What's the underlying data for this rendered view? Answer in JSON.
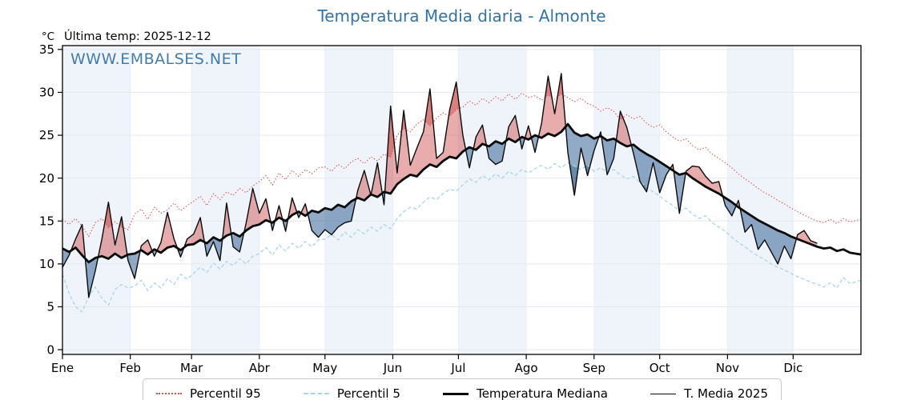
{
  "header": {
    "title": "Temperatura Media diaria - Almonte",
    "unit_label": "°C",
    "last_temp_label": "Última temp: 2025-12-12",
    "watermark": "WWW.EMBALSES.NET"
  },
  "chart_data": {
    "type": "line",
    "title": "Temperatura Media diaria - Almonte",
    "xlabel": "",
    "ylabel": "°C",
    "ylim": [
      0,
      35
    ],
    "y_ticks": [
      0,
      5,
      10,
      15,
      20,
      25,
      30,
      35
    ],
    "x_tick_labels": [
      "Ene",
      "Feb",
      "Mar",
      "Abr",
      "May",
      "Jun",
      "Jul",
      "Ago",
      "Sep",
      "Oct",
      "Nov",
      "Dic"
    ],
    "month_start_days": [
      1,
      32,
      60,
      91,
      121,
      152,
      182,
      213,
      244,
      274,
      305,
      335
    ],
    "days_in_year": 365,
    "sample_day_start": 1,
    "sample_day_step": 3,
    "grid": true,
    "legend_position": "bottom",
    "band_color": "#eff4fa",
    "grid_color": "#e4e8ef",
    "vgrid_color": "#e9eef5",
    "fill_above_color": "rgba(205,70,70,0.45)",
    "fill_below_color": "rgba(54,100,150,0.55)",
    "fill_extreme_above_color": "rgba(200,40,40,0.35)",
    "fill_extreme_below_color": "rgba(30,80,130,0.35)",
    "series": [
      {
        "name": "Percentil 95",
        "style": "dotted",
        "color": "#e14b4b",
        "values": [
          15.2,
          14.6,
          15.3,
          14.4,
          13.2,
          14.8,
          15.3,
          14.2,
          14.9,
          14.3,
          14.0,
          15.8,
          16.4,
          15.2,
          16.6,
          15.9,
          16.3,
          17.1,
          16.2,
          16.8,
          17.3,
          17.9,
          16.8,
          18.2,
          17.5,
          18.4,
          18.0,
          18.8,
          18.3,
          19.1,
          19.6,
          20.3,
          19.2,
          20.6,
          19.8,
          20.9,
          20.2,
          21.0,
          20.5,
          21.2,
          21.3,
          20.8,
          21.6,
          21.1,
          21.9,
          22.3,
          21.7,
          22.5,
          22.0,
          22.8,
          22.4,
          25.0,
          25.8,
          25.4,
          26.3,
          26.8,
          26.1,
          27.0,
          27.6,
          27.2,
          28.0,
          28.3,
          29.0,
          28.5,
          29.3,
          28.8,
          29.5,
          29.0,
          29.8,
          29.2,
          29.9,
          29.4,
          29.6,
          29.1,
          29.7,
          29.2,
          29.8,
          29.4,
          28.9,
          29.3,
          28.7,
          28.4,
          27.8,
          28.2,
          27.8,
          26.8,
          27.4,
          26.9,
          27.2,
          26.4,
          25.9,
          26.2,
          25.4,
          24.8,
          24.3,
          24.6,
          23.8,
          23.3,
          23.6,
          22.8,
          22.3,
          21.8,
          21.2,
          20.5,
          19.9,
          19.4,
          18.8,
          18.3,
          17.9,
          17.4,
          17.0,
          16.5,
          16.1,
          15.7,
          15.3,
          15.0,
          14.8,
          15.2,
          14.7,
          15.3,
          14.9,
          15.2
        ]
      },
      {
        "name": "Percentil 5",
        "style": "dashed",
        "color": "#a9d5ea",
        "values": [
          8.8,
          6.6,
          5.0,
          4.4,
          6.2,
          7.3,
          6.0,
          5.2,
          7.0,
          7.6,
          7.2,
          7.4,
          8.1,
          6.9,
          7.8,
          7.2,
          8.3,
          7.6,
          8.8,
          8.2,
          8.9,
          9.6,
          9.0,
          10.1,
          9.4,
          10.3,
          9.8,
          10.6,
          10.0,
          10.9,
          11.2,
          11.9,
          11.0,
          12.2,
          11.5,
          12.4,
          11.8,
          12.6,
          12.0,
          12.8,
          12.9,
          13.4,
          12.8,
          13.7,
          13.1,
          14.0,
          13.5,
          14.3,
          13.8,
          14.6,
          14.1,
          15.3,
          16.1,
          16.6,
          16.4,
          17.2,
          17.8,
          17.5,
          18.2,
          18.7,
          18.5,
          19.2,
          19.9,
          19.5,
          20.3,
          19.8,
          20.5,
          20.0,
          20.8,
          20.3,
          21.0,
          20.6,
          21.1,
          21.5,
          21.0,
          21.7,
          21.2,
          21.8,
          21.4,
          21.0,
          21.5,
          20.8,
          21.2,
          20.7,
          21.0,
          20.4,
          19.9,
          20.2,
          19.5,
          19.0,
          18.4,
          17.9,
          17.3,
          16.8,
          16.2,
          16.5,
          15.8,
          15.3,
          15.6,
          14.8,
          14.3,
          13.8,
          13.1,
          12.5,
          12.0,
          11.4,
          10.9,
          10.5,
          10.0,
          9.6,
          9.3,
          8.9,
          8.5,
          8.2,
          7.9,
          7.6,
          7.3,
          7.8,
          7.2,
          8.4,
          7.7,
          8.1
        ]
      },
      {
        "name": "Temperatura Mediana",
        "style": "solid-thick",
        "color": "#0a0a0a",
        "values": [
          11.8,
          11.4,
          11.9,
          11.0,
          10.2,
          10.7,
          10.9,
          10.6,
          11.2,
          10.7,
          11.1,
          11.2,
          11.6,
          11.1,
          11.7,
          11.3,
          11.9,
          12.1,
          11.6,
          12.2,
          12.3,
          12.8,
          12.4,
          13.1,
          12.7,
          13.3,
          13.6,
          13.2,
          13.9,
          14.4,
          14.6,
          15.1,
          14.8,
          15.4,
          15.0,
          15.7,
          16.1,
          15.6,
          16.2,
          16.0,
          16.5,
          16.3,
          16.9,
          16.6,
          17.3,
          17.7,
          17.4,
          18.1,
          17.8,
          18.4,
          18.2,
          19.3,
          19.9,
          20.4,
          20.2,
          21.0,
          21.6,
          21.3,
          22.0,
          22.5,
          22.3,
          23.1,
          23.6,
          23.3,
          24.0,
          23.7,
          24.3,
          24.0,
          24.6,
          24.2,
          24.8,
          24.5,
          25.0,
          24.7,
          25.2,
          24.9,
          25.4,
          26.3,
          25.3,
          24.9,
          25.1,
          24.6,
          24.9,
          24.4,
          24.6,
          24.1,
          23.7,
          23.9,
          23.3,
          22.8,
          22.4,
          21.9,
          21.4,
          20.9,
          20.4,
          20.6,
          20.0,
          19.5,
          19.0,
          18.6,
          18.2,
          17.7,
          17.2,
          16.6,
          16.1,
          15.6,
          15.1,
          14.7,
          14.3,
          13.9,
          13.6,
          13.2,
          12.9,
          12.6,
          12.3,
          12.0,
          11.8,
          11.9,
          11.5,
          11.7,
          11.3,
          11.1
        ]
      },
      {
        "name": "T. Media 2025",
        "style": "solid-thin",
        "color": "#0a0a0a",
        "last_day": 346,
        "values": [
          9.6,
          11.0,
          12.9,
          14.6,
          6.1,
          9.2,
          12.9,
          17.2,
          12.2,
          15.5,
          10.4,
          8.3,
          12.1,
          12.8,
          10.9,
          12.5,
          16.0,
          12.9,
          10.8,
          12.9,
          13.5,
          15.4,
          10.9,
          12.6,
          10.4,
          17.1,
          12.0,
          11.4,
          14.8,
          18.8,
          15.9,
          17.6,
          13.9,
          16.8,
          13.8,
          17.7,
          15.4,
          17.0,
          13.9,
          13.1,
          14.0,
          13.4,
          14.3,
          14.8,
          15.0,
          18.6,
          20.9,
          18.0,
          21.8,
          16.9,
          28.4,
          20.6,
          27.9,
          21.5,
          23.5,
          25.4,
          30.4,
          22.3,
          23.0,
          28.0,
          31.2,
          25.0,
          21.2,
          24.8,
          26.2,
          22.3,
          21.6,
          22.0,
          26.0,
          27.3,
          23.4,
          26.1,
          23.0,
          26.4,
          31.9,
          27.5,
          32.2,
          23.0,
          18.0,
          23.5,
          20.3,
          23.2,
          25.4,
          20.4,
          22.3,
          27.8,
          25.9,
          22.9,
          19.6,
          18.4,
          21.8,
          18.3,
          20.4,
          21.6,
          15.9,
          20.8,
          21.4,
          21.3,
          20.2,
          19.4,
          19.6,
          16.8,
          15.6,
          17.4,
          13.7,
          14.6,
          11.7,
          12.8,
          11.4,
          10.0,
          12.1,
          10.6,
          13.4,
          13.9,
          12.7,
          12.4
        ]
      }
    ]
  }
}
